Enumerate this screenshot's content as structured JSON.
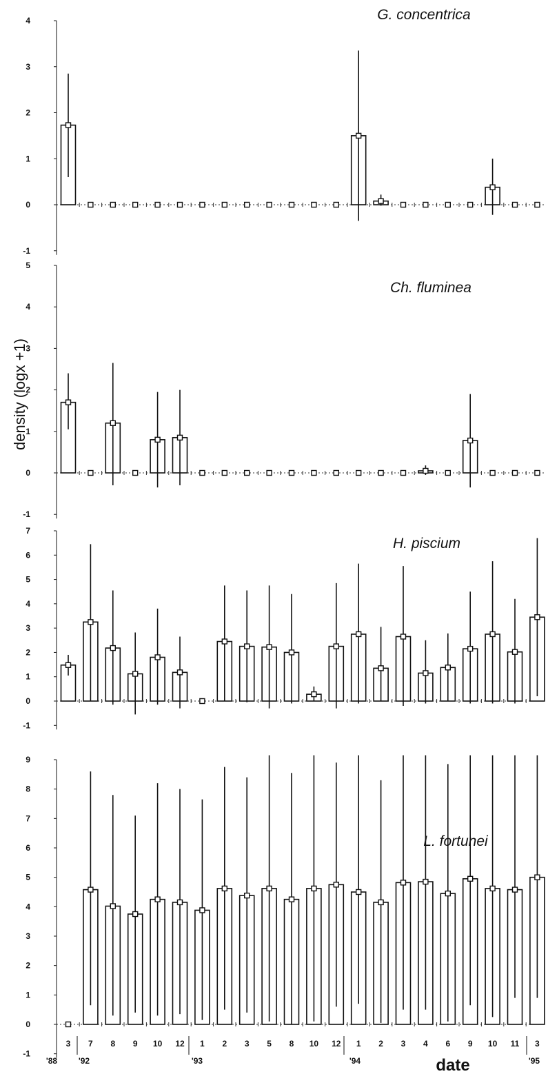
{
  "figure": {
    "ylabel": "density (logx +1)",
    "xlabel": "date"
  },
  "x_tick_labels": [
    "3",
    "7",
    "8",
    "9",
    "10",
    "12",
    "1",
    "2",
    "3",
    "5",
    "8",
    "10",
    "12",
    "1",
    "2",
    "3",
    "4",
    "6",
    "9",
    "10",
    "11",
    "3"
  ],
  "year_labels": [
    {
      "label": "'88",
      "after_index": null,
      "at_index": 0
    },
    {
      "label": "'92",
      "at_index": 1
    },
    {
      "label": "'93",
      "at_index": 6
    },
    {
      "label": "'94",
      "at_index": 13
    },
    {
      "label": "'95",
      "at_index": 21
    }
  ],
  "chart_data": [
    {
      "type": "bar",
      "title": "G. concentrica",
      "ylim": [
        -1,
        4
      ],
      "yticks": [
        -1,
        0,
        1,
        2,
        3,
        4
      ],
      "categories": [
        "3",
        "7",
        "8",
        "9",
        "10",
        "12",
        "1",
        "2",
        "3",
        "5",
        "8",
        "10",
        "12",
        "1",
        "2",
        "3",
        "4",
        "6",
        "9",
        "10",
        "11",
        "3"
      ],
      "values": [
        1.73,
        0,
        0,
        0,
        0,
        0,
        0,
        0,
        0,
        0,
        0,
        0,
        0,
        1.5,
        0.08,
        0,
        0,
        0,
        0,
        0.38,
        0,
        0
      ],
      "error_low": [
        0.6,
        0,
        0,
        0,
        0,
        0,
        0,
        0,
        0,
        0,
        0,
        0,
        0,
        -0.35,
        -0.02,
        0,
        0,
        0,
        0,
        -0.22,
        0,
        0
      ],
      "error_high": [
        2.85,
        0,
        0,
        0,
        0,
        0,
        0,
        0,
        0,
        0,
        0,
        0,
        0,
        3.35,
        0.22,
        0,
        0,
        0,
        0,
        1.0,
        0,
        0
      ]
    },
    {
      "type": "bar",
      "title": "Ch. fluminea",
      "ylim": [
        -1,
        5
      ],
      "yticks": [
        -1,
        0,
        1,
        2,
        3,
        4,
        5
      ],
      "categories": [
        "3",
        "7",
        "8",
        "9",
        "10",
        "12",
        "1",
        "2",
        "3",
        "5",
        "8",
        "10",
        "12",
        "1",
        "2",
        "3",
        "4",
        "6",
        "9",
        "10",
        "11",
        "3"
      ],
      "values": [
        1.7,
        0,
        1.2,
        0,
        0.8,
        0.85,
        0,
        0,
        0,
        0,
        0,
        0,
        0,
        0,
        0,
        0,
        0.05,
        0,
        0.78,
        0,
        0,
        0
      ],
      "error_low": [
        1.05,
        0,
        -0.3,
        0,
        -0.35,
        -0.3,
        0,
        0,
        0,
        0,
        0,
        0,
        0,
        0,
        0,
        0,
        -0.05,
        0,
        -0.35,
        0,
        0,
        0
      ],
      "error_high": [
        2.4,
        0,
        2.65,
        0,
        1.95,
        2.0,
        0,
        0,
        0,
        0,
        0,
        0,
        0,
        0,
        0,
        0,
        0.18,
        0,
        1.9,
        0,
        0,
        0
      ]
    },
    {
      "type": "bar",
      "title": "H. piscium",
      "ylim": [
        -1,
        7
      ],
      "yticks": [
        -1,
        0,
        1,
        2,
        3,
        4,
        5,
        6,
        7
      ],
      "categories": [
        "3",
        "7",
        "8",
        "9",
        "10",
        "12",
        "1",
        "2",
        "3",
        "5",
        "8",
        "10",
        "12",
        "1",
        "2",
        "3",
        "4",
        "6",
        "9",
        "10",
        "11",
        "3"
      ],
      "values": [
        1.48,
        3.25,
        2.18,
        1.12,
        1.8,
        1.18,
        0,
        2.45,
        2.25,
        2.22,
        2.0,
        0.28,
        2.25,
        2.75,
        1.35,
        2.65,
        1.15,
        1.38,
        2.15,
        2.75,
        2.02,
        3.45
      ],
      "error_low": [
        1.05,
        0,
        -0.15,
        -0.55,
        -0.15,
        -0.3,
        0,
        0,
        -0.05,
        -0.3,
        -0.1,
        0,
        -0.3,
        -0.1,
        0,
        -0.2,
        -0.1,
        0,
        -0.1,
        -0.1,
        -0.1,
        0.2
      ],
      "error_high": [
        1.9,
        6.45,
        4.55,
        2.82,
        3.8,
        2.65,
        0,
        4.75,
        4.55,
        4.75,
        4.4,
        0.6,
        4.85,
        5.65,
        3.05,
        5.55,
        2.5,
        2.78,
        4.5,
        5.75,
        4.2,
        6.7
      ]
    },
    {
      "type": "bar",
      "title": "L. fortunei",
      "ylim": [
        -1,
        9
      ],
      "yticks": [
        -1,
        0,
        1,
        2,
        3,
        4,
        5,
        6,
        7,
        8,
        9
      ],
      "categories": [
        "3",
        "7",
        "8",
        "9",
        "10",
        "12",
        "1",
        "2",
        "3",
        "5",
        "8",
        "10",
        "12",
        "1",
        "2",
        "3",
        "4",
        "6",
        "9",
        "10",
        "11",
        "3"
      ],
      "values": [
        0,
        4.58,
        4.02,
        3.75,
        4.25,
        4.15,
        3.88,
        4.62,
        4.38,
        4.62,
        4.25,
        4.62,
        4.75,
        4.5,
        4.15,
        4.82,
        4.85,
        4.45,
        4.95,
        4.62,
        4.58,
        5.0
      ],
      "error_low": [
        0,
        0.65,
        0.3,
        0.4,
        0.3,
        0.35,
        0.15,
        0.5,
        0.4,
        0.1,
        0.0,
        0.1,
        0.6,
        0.7,
        0.05,
        0.5,
        0.5,
        0.1,
        0.65,
        0.25,
        0.9,
        0.9
      ],
      "error_high": [
        0,
        8.6,
        7.8,
        7.1,
        8.2,
        8.0,
        7.65,
        8.75,
        8.4,
        9.15,
        8.55,
        9.15,
        8.9,
        9.15,
        8.3,
        9.15,
        9.15,
        8.85,
        9.15,
        9.15,
        9.15,
        9.15
      ]
    }
  ]
}
